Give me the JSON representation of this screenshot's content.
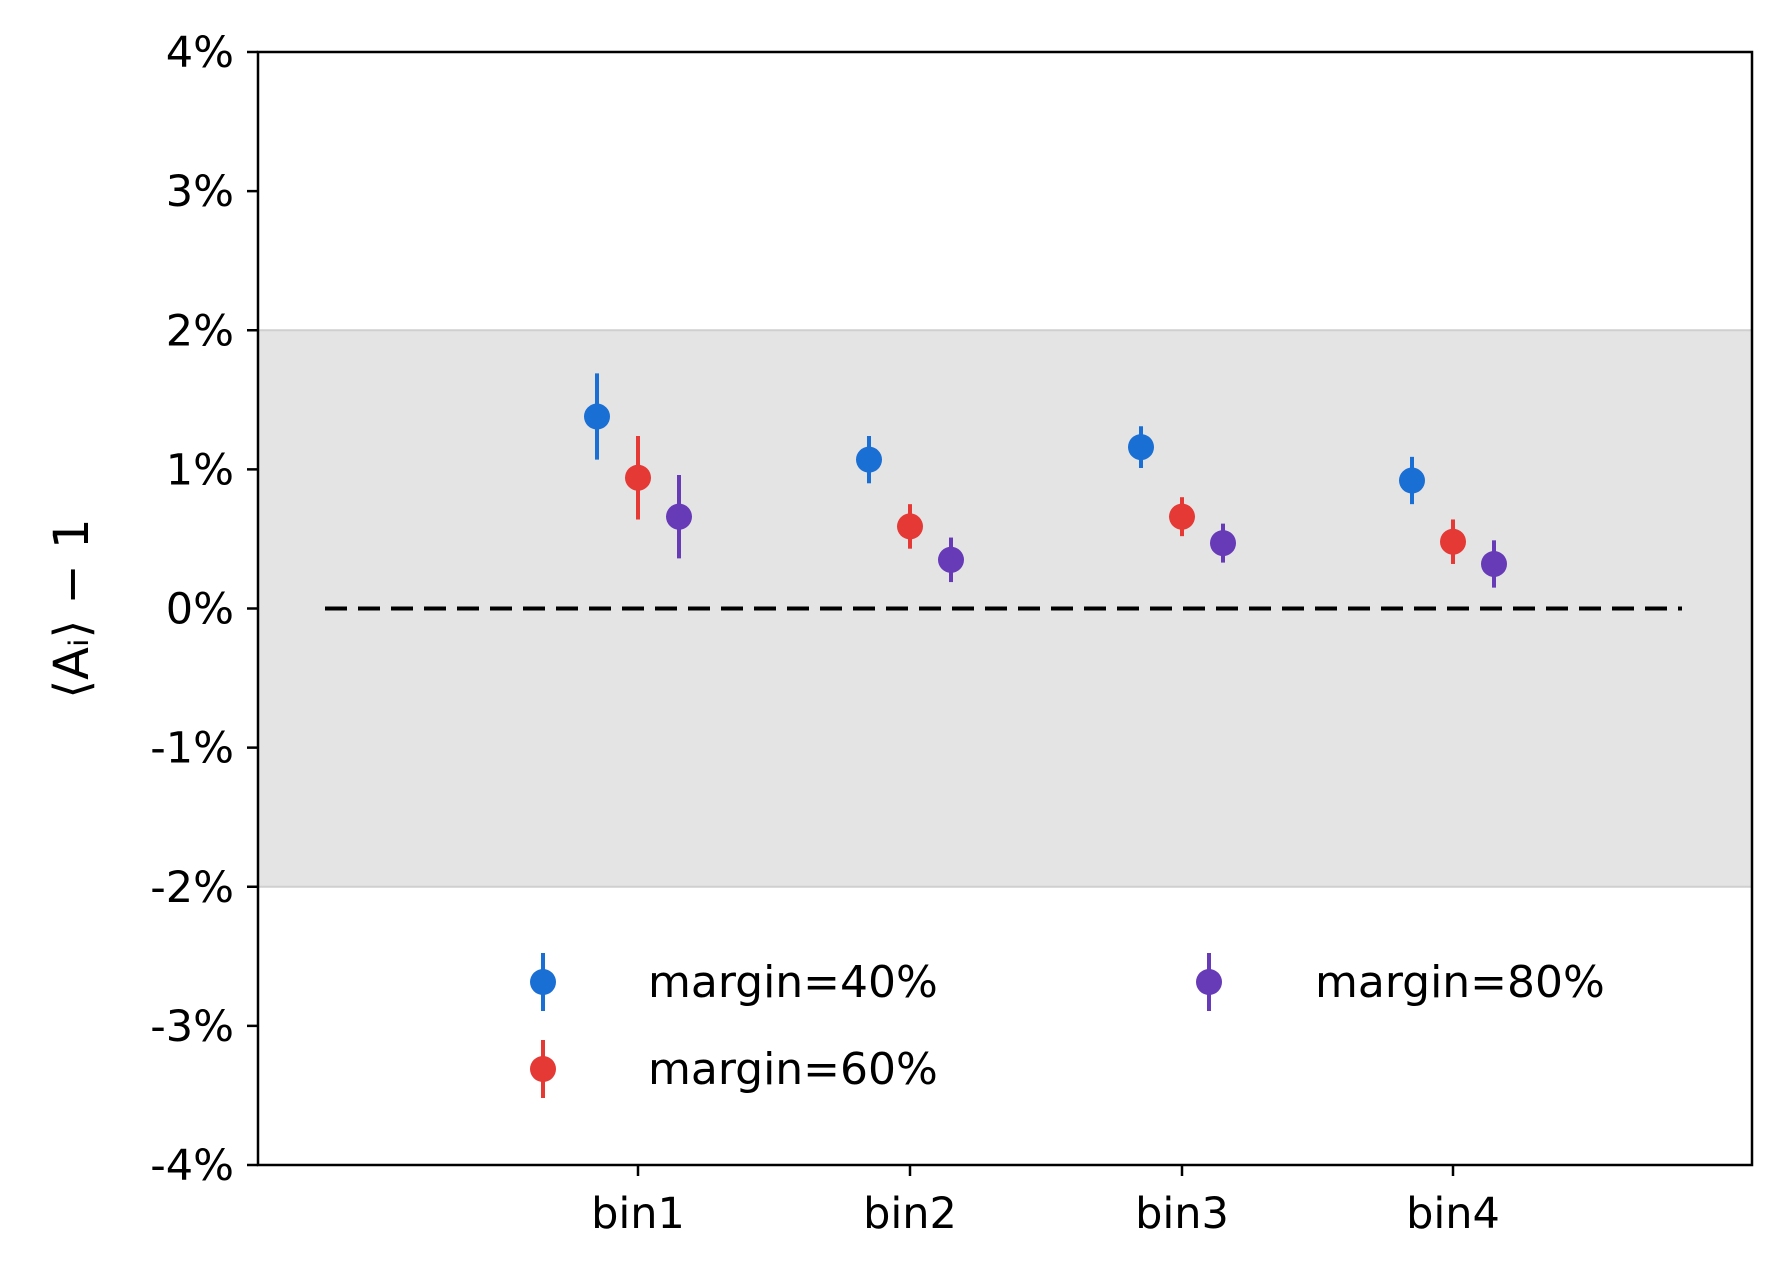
{
  "chart_data": {
    "type": "scatter",
    "title": "",
    "xlabel": "",
    "ylabel": "⟨A_i⟩ − 1",
    "categories": [
      "bin1",
      "bin2",
      "bin3",
      "bin4"
    ],
    "ylim": [
      -4,
      4
    ],
    "yticks": [
      {
        "value": 4,
        "label": "4%"
      },
      {
        "value": 3,
        "label": "3%"
      },
      {
        "value": 2,
        "label": "2%"
      },
      {
        "value": 1,
        "label": "1%"
      },
      {
        "value": 0,
        "label": "0%"
      },
      {
        "value": -1,
        "label": "-1%"
      },
      {
        "value": -2,
        "label": "-2%"
      },
      {
        "value": -3,
        "label": "-3%"
      },
      {
        "value": -4,
        "label": "-4%"
      }
    ],
    "shaded_band": {
      "from": -2,
      "to": 2,
      "color": "#e4e4e4"
    },
    "reference_line": {
      "y": 0,
      "style": "dashed",
      "color": "#000000"
    },
    "legend": {
      "position": "lower-right",
      "columns": 2
    },
    "series": [
      {
        "name": "margin=40%",
        "color": "#1a6fd4",
        "values": [
          1.38,
          1.07,
          1.16,
          0.92
        ],
        "errors": [
          0.31,
          0.17,
          0.15,
          0.17
        ]
      },
      {
        "name": "margin=60%",
        "color": "#e53935",
        "values": [
          0.94,
          0.59,
          0.66,
          0.48
        ],
        "errors": [
          0.3,
          0.16,
          0.14,
          0.16
        ]
      },
      {
        "name": "margin=80%",
        "color": "#673ab7",
        "values": [
          0.66,
          0.35,
          0.47,
          0.32
        ],
        "errors": [
          0.3,
          0.16,
          0.14,
          0.17
        ]
      }
    ]
  }
}
